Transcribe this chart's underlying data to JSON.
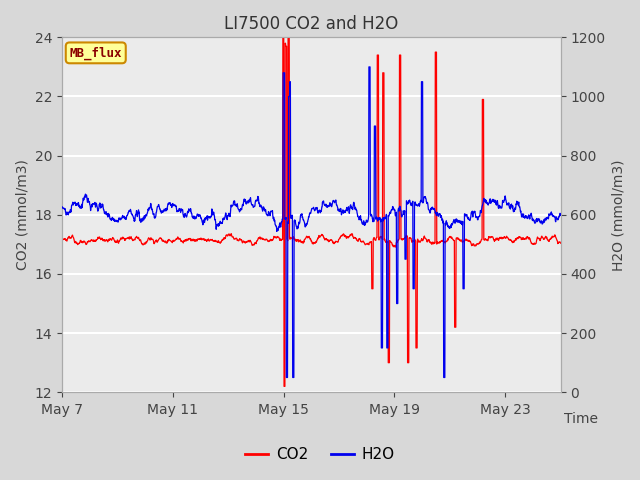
{
  "title": "LI7500 CO2 and H2O",
  "xlabel": "Time",
  "ylabel_left": "CO2 (mmol/m3)",
  "ylabel_right": "H2O (mmol/m3)",
  "ylim_left": [
    12,
    24
  ],
  "ylim_right": [
    0,
    1200
  ],
  "yticks_left": [
    12,
    14,
    16,
    18,
    20,
    22,
    24
  ],
  "yticks_right": [
    0,
    200,
    400,
    600,
    800,
    1000,
    1200
  ],
  "xtick_labels": [
    "May 7",
    "May 11",
    "May 15",
    "May 19",
    "May 23"
  ],
  "xtick_positions": [
    0,
    4,
    8,
    12,
    16
  ],
  "xlim": [
    0,
    18
  ],
  "co2_color": "#FF0000",
  "h2o_color": "#0000EE",
  "fig_facecolor": "#D8D8D8",
  "axes_facecolor": "#EBEBEB",
  "annotation_text": "MB_flux",
  "annotation_facecolor": "#FFFF99",
  "annotation_edgecolor": "#CC8800",
  "annotation_textcolor": "#8B0000",
  "legend_co2": "CO2",
  "legend_h2o": "H2O",
  "title_fontsize": 12,
  "label_fontsize": 10,
  "tick_fontsize": 10,
  "legend_fontsize": 11
}
